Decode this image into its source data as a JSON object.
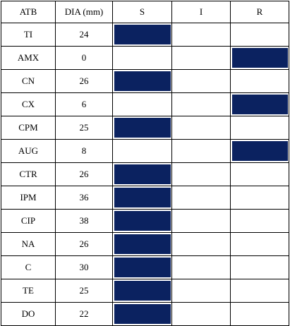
{
  "colors": {
    "fill": "#0b2260",
    "border": "#000000"
  },
  "headers": {
    "atb": "ATB",
    "dia": "DIA (mm)",
    "s": "S",
    "i": "I",
    "r": "R"
  },
  "rows": [
    {
      "atb": "TI",
      "dia": "24",
      "result": "S"
    },
    {
      "atb": "AMX",
      "dia": "0",
      "result": "R"
    },
    {
      "atb": "CN",
      "dia": "26",
      "result": "S"
    },
    {
      "atb": "CX",
      "dia": "6",
      "result": "R"
    },
    {
      "atb": "CPM",
      "dia": "25",
      "result": "S"
    },
    {
      "atb": "AUG",
      "dia": "8",
      "result": "R"
    },
    {
      "atb": "CTR",
      "dia": "26",
      "result": "S"
    },
    {
      "atb": "IPM",
      "dia": "36",
      "result": "S"
    },
    {
      "atb": "CIP",
      "dia": "38",
      "result": "S"
    },
    {
      "atb": "NA",
      "dia": "26",
      "result": "S"
    },
    {
      "atb": "C",
      "dia": "30",
      "result": "S"
    },
    {
      "atb": "TE",
      "dia": "25",
      "result": "S"
    },
    {
      "atb": "DO",
      "dia": "22",
      "result": "S"
    }
  ]
}
